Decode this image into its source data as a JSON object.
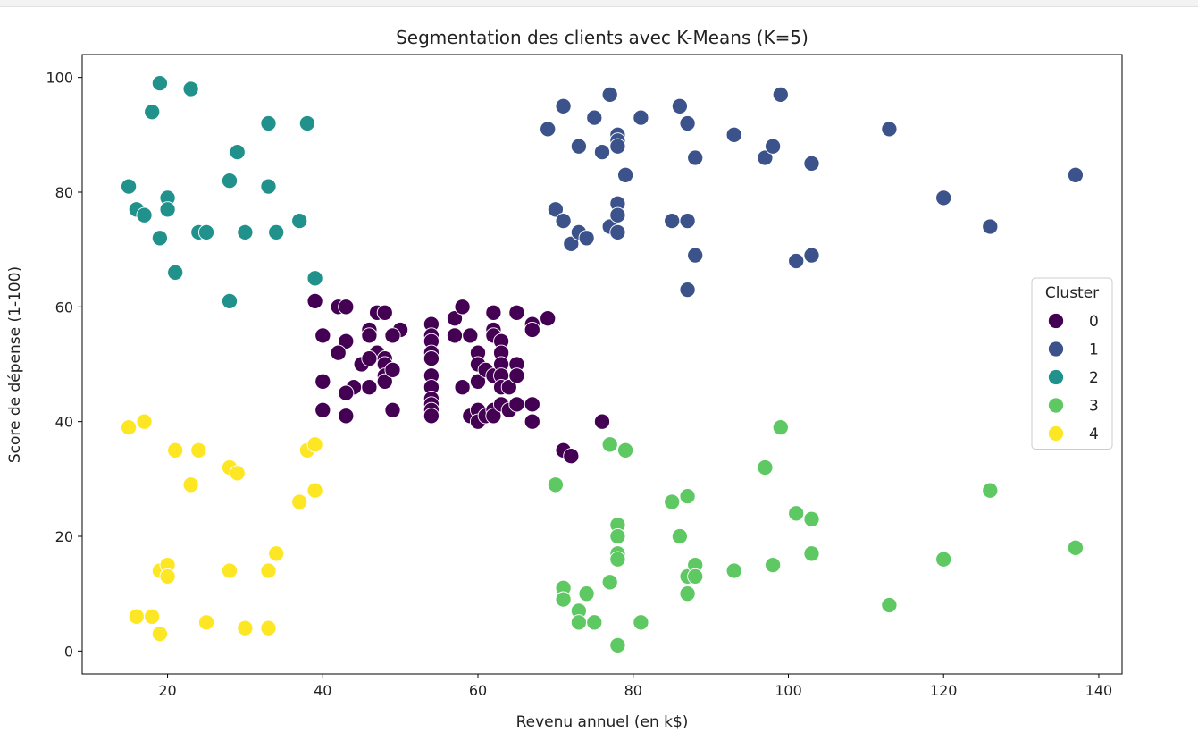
{
  "chart_data": {
    "type": "scatter",
    "title": "Segmentation des clients avec K-Means (K=5)",
    "xlabel": "Revenu annuel (en k$)",
    "ylabel": "Score de dépense (1-100)",
    "xlim": [
      9,
      143
    ],
    "ylim": [
      -4,
      104
    ],
    "xticks": [
      20,
      40,
      60,
      80,
      100,
      120,
      140
    ],
    "yticks": [
      0,
      20,
      40,
      60,
      80,
      100
    ],
    "grid": false,
    "legend": {
      "title": "Cluster",
      "position": "right"
    },
    "series": [
      {
        "name": "0",
        "color": "#440154",
        "points": [
          [
            39,
            61
          ],
          [
            42,
            60
          ],
          [
            43,
            60
          ],
          [
            40,
            55
          ],
          [
            43,
            54
          ],
          [
            45,
            50
          ],
          [
            42,
            52
          ],
          [
            44,
            46
          ],
          [
            43,
            45
          ],
          [
            40,
            47
          ],
          [
            40,
            42
          ],
          [
            43,
            41
          ],
          [
            46,
            46
          ],
          [
            47,
            59
          ],
          [
            48,
            59
          ],
          [
            46,
            56
          ],
          [
            46,
            55
          ],
          [
            47,
            52
          ],
          [
            48,
            51
          ],
          [
            48,
            50
          ],
          [
            48,
            48
          ],
          [
            48,
            47
          ],
          [
            50,
            56
          ],
          [
            49,
            55
          ],
          [
            49,
            49
          ],
          [
            49,
            42
          ],
          [
            46,
            51
          ],
          [
            54,
            57
          ],
          [
            54,
            55
          ],
          [
            54,
            54
          ],
          [
            54,
            52
          ],
          [
            54,
            51
          ],
          [
            54,
            48
          ],
          [
            54,
            46
          ],
          [
            54,
            44
          ],
          [
            54,
            43
          ],
          [
            54,
            42
          ],
          [
            54,
            41
          ],
          [
            57,
            58
          ],
          [
            57,
            55
          ],
          [
            58,
            60
          ],
          [
            59,
            55
          ],
          [
            58,
            46
          ],
          [
            59,
            41
          ],
          [
            60,
            52
          ],
          [
            60,
            50
          ],
          [
            60,
            47
          ],
          [
            61,
            49
          ],
          [
            60,
            42
          ],
          [
            60,
            40
          ],
          [
            61,
            41
          ],
          [
            62,
            59
          ],
          [
            62,
            56
          ],
          [
            62,
            55
          ],
          [
            62,
            48
          ],
          [
            62,
            42
          ],
          [
            62,
            41
          ],
          [
            63,
            54
          ],
          [
            63,
            52
          ],
          [
            63,
            50
          ],
          [
            63,
            48
          ],
          [
            63,
            46
          ],
          [
            63,
            43
          ],
          [
            64,
            46
          ],
          [
            64,
            42
          ],
          [
            65,
            59
          ],
          [
            65,
            50
          ],
          [
            65,
            48
          ],
          [
            65,
            43
          ],
          [
            67,
            57
          ],
          [
            67,
            56
          ],
          [
            67,
            43
          ],
          [
            67,
            40
          ],
          [
            69,
            58
          ],
          [
            71,
            35
          ],
          [
            72,
            34
          ],
          [
            76,
            40
          ]
        ]
      },
      {
        "name": "1",
        "color": "#3b528b",
        "points": [
          [
            69,
            91
          ],
          [
            70,
            77
          ],
          [
            71,
            95
          ],
          [
            71,
            75
          ],
          [
            72,
            71
          ],
          [
            73,
            88
          ],
          [
            73,
            73
          ],
          [
            74,
            72
          ],
          [
            75,
            93
          ],
          [
            76,
            87
          ],
          [
            77,
            97
          ],
          [
            77,
            74
          ],
          [
            78,
            90
          ],
          [
            78,
            89
          ],
          [
            78,
            88
          ],
          [
            78,
            78
          ],
          [
            78,
            76
          ],
          [
            78,
            73
          ],
          [
            79,
            83
          ],
          [
            81,
            93
          ],
          [
            85,
            75
          ],
          [
            86,
            95
          ],
          [
            87,
            92
          ],
          [
            87,
            75
          ],
          [
            87,
            63
          ],
          [
            88,
            86
          ],
          [
            88,
            69
          ],
          [
            93,
            90
          ],
          [
            97,
            86
          ],
          [
            98,
            88
          ],
          [
            99,
            97
          ],
          [
            101,
            68
          ],
          [
            103,
            85
          ],
          [
            103,
            69
          ],
          [
            113,
            91
          ],
          [
            120,
            79
          ],
          [
            126,
            74
          ],
          [
            137,
            83
          ]
        ]
      },
      {
        "name": "2",
        "color": "#21918c",
        "points": [
          [
            15,
            81
          ],
          [
            16,
            77
          ],
          [
            17,
            76
          ],
          [
            18,
            94
          ],
          [
            19,
            99
          ],
          [
            19,
            72
          ],
          [
            20,
            79
          ],
          [
            20,
            77
          ],
          [
            21,
            66
          ],
          [
            23,
            98
          ],
          [
            24,
            73
          ],
          [
            25,
            73
          ],
          [
            28,
            82
          ],
          [
            28,
            61
          ],
          [
            29,
            87
          ],
          [
            30,
            73
          ],
          [
            33,
            92
          ],
          [
            33,
            81
          ],
          [
            34,
            73
          ],
          [
            37,
            75
          ],
          [
            38,
            92
          ],
          [
            39,
            65
          ]
        ]
      },
      {
        "name": "3",
        "color": "#5ec962",
        "points": [
          [
            70,
            29
          ],
          [
            71,
            11
          ],
          [
            71,
            9
          ],
          [
            73,
            7
          ],
          [
            73,
            5
          ],
          [
            74,
            10
          ],
          [
            75,
            5
          ],
          [
            77,
            36
          ],
          [
            77,
            12
          ],
          [
            78,
            22
          ],
          [
            78,
            20
          ],
          [
            78,
            17
          ],
          [
            78,
            16
          ],
          [
            78,
            1
          ],
          [
            79,
            35
          ],
          [
            81,
            5
          ],
          [
            85,
            26
          ],
          [
            86,
            20
          ],
          [
            87,
            27
          ],
          [
            87,
            13
          ],
          [
            87,
            10
          ],
          [
            88,
            15
          ],
          [
            88,
            13
          ],
          [
            93,
            14
          ],
          [
            97,
            32
          ],
          [
            98,
            15
          ],
          [
            99,
            39
          ],
          [
            101,
            24
          ],
          [
            103,
            23
          ],
          [
            103,
            17
          ],
          [
            113,
            8
          ],
          [
            120,
            16
          ],
          [
            126,
            28
          ],
          [
            137,
            18
          ]
        ]
      },
      {
        "name": "4",
        "color": "#fde725",
        "points": [
          [
            15,
            39
          ],
          [
            16,
            6
          ],
          [
            17,
            40
          ],
          [
            18,
            6
          ],
          [
            19,
            14
          ],
          [
            19,
            3
          ],
          [
            20,
            15
          ],
          [
            20,
            13
          ],
          [
            21,
            35
          ],
          [
            23,
            29
          ],
          [
            24,
            35
          ],
          [
            25,
            5
          ],
          [
            28,
            32
          ],
          [
            28,
            14
          ],
          [
            29,
            31
          ],
          [
            30,
            4
          ],
          [
            33,
            14
          ],
          [
            33,
            4
          ],
          [
            34,
            17
          ],
          [
            37,
            26
          ],
          [
            38,
            35
          ],
          [
            39,
            36
          ],
          [
            39,
            28
          ]
        ]
      }
    ]
  }
}
